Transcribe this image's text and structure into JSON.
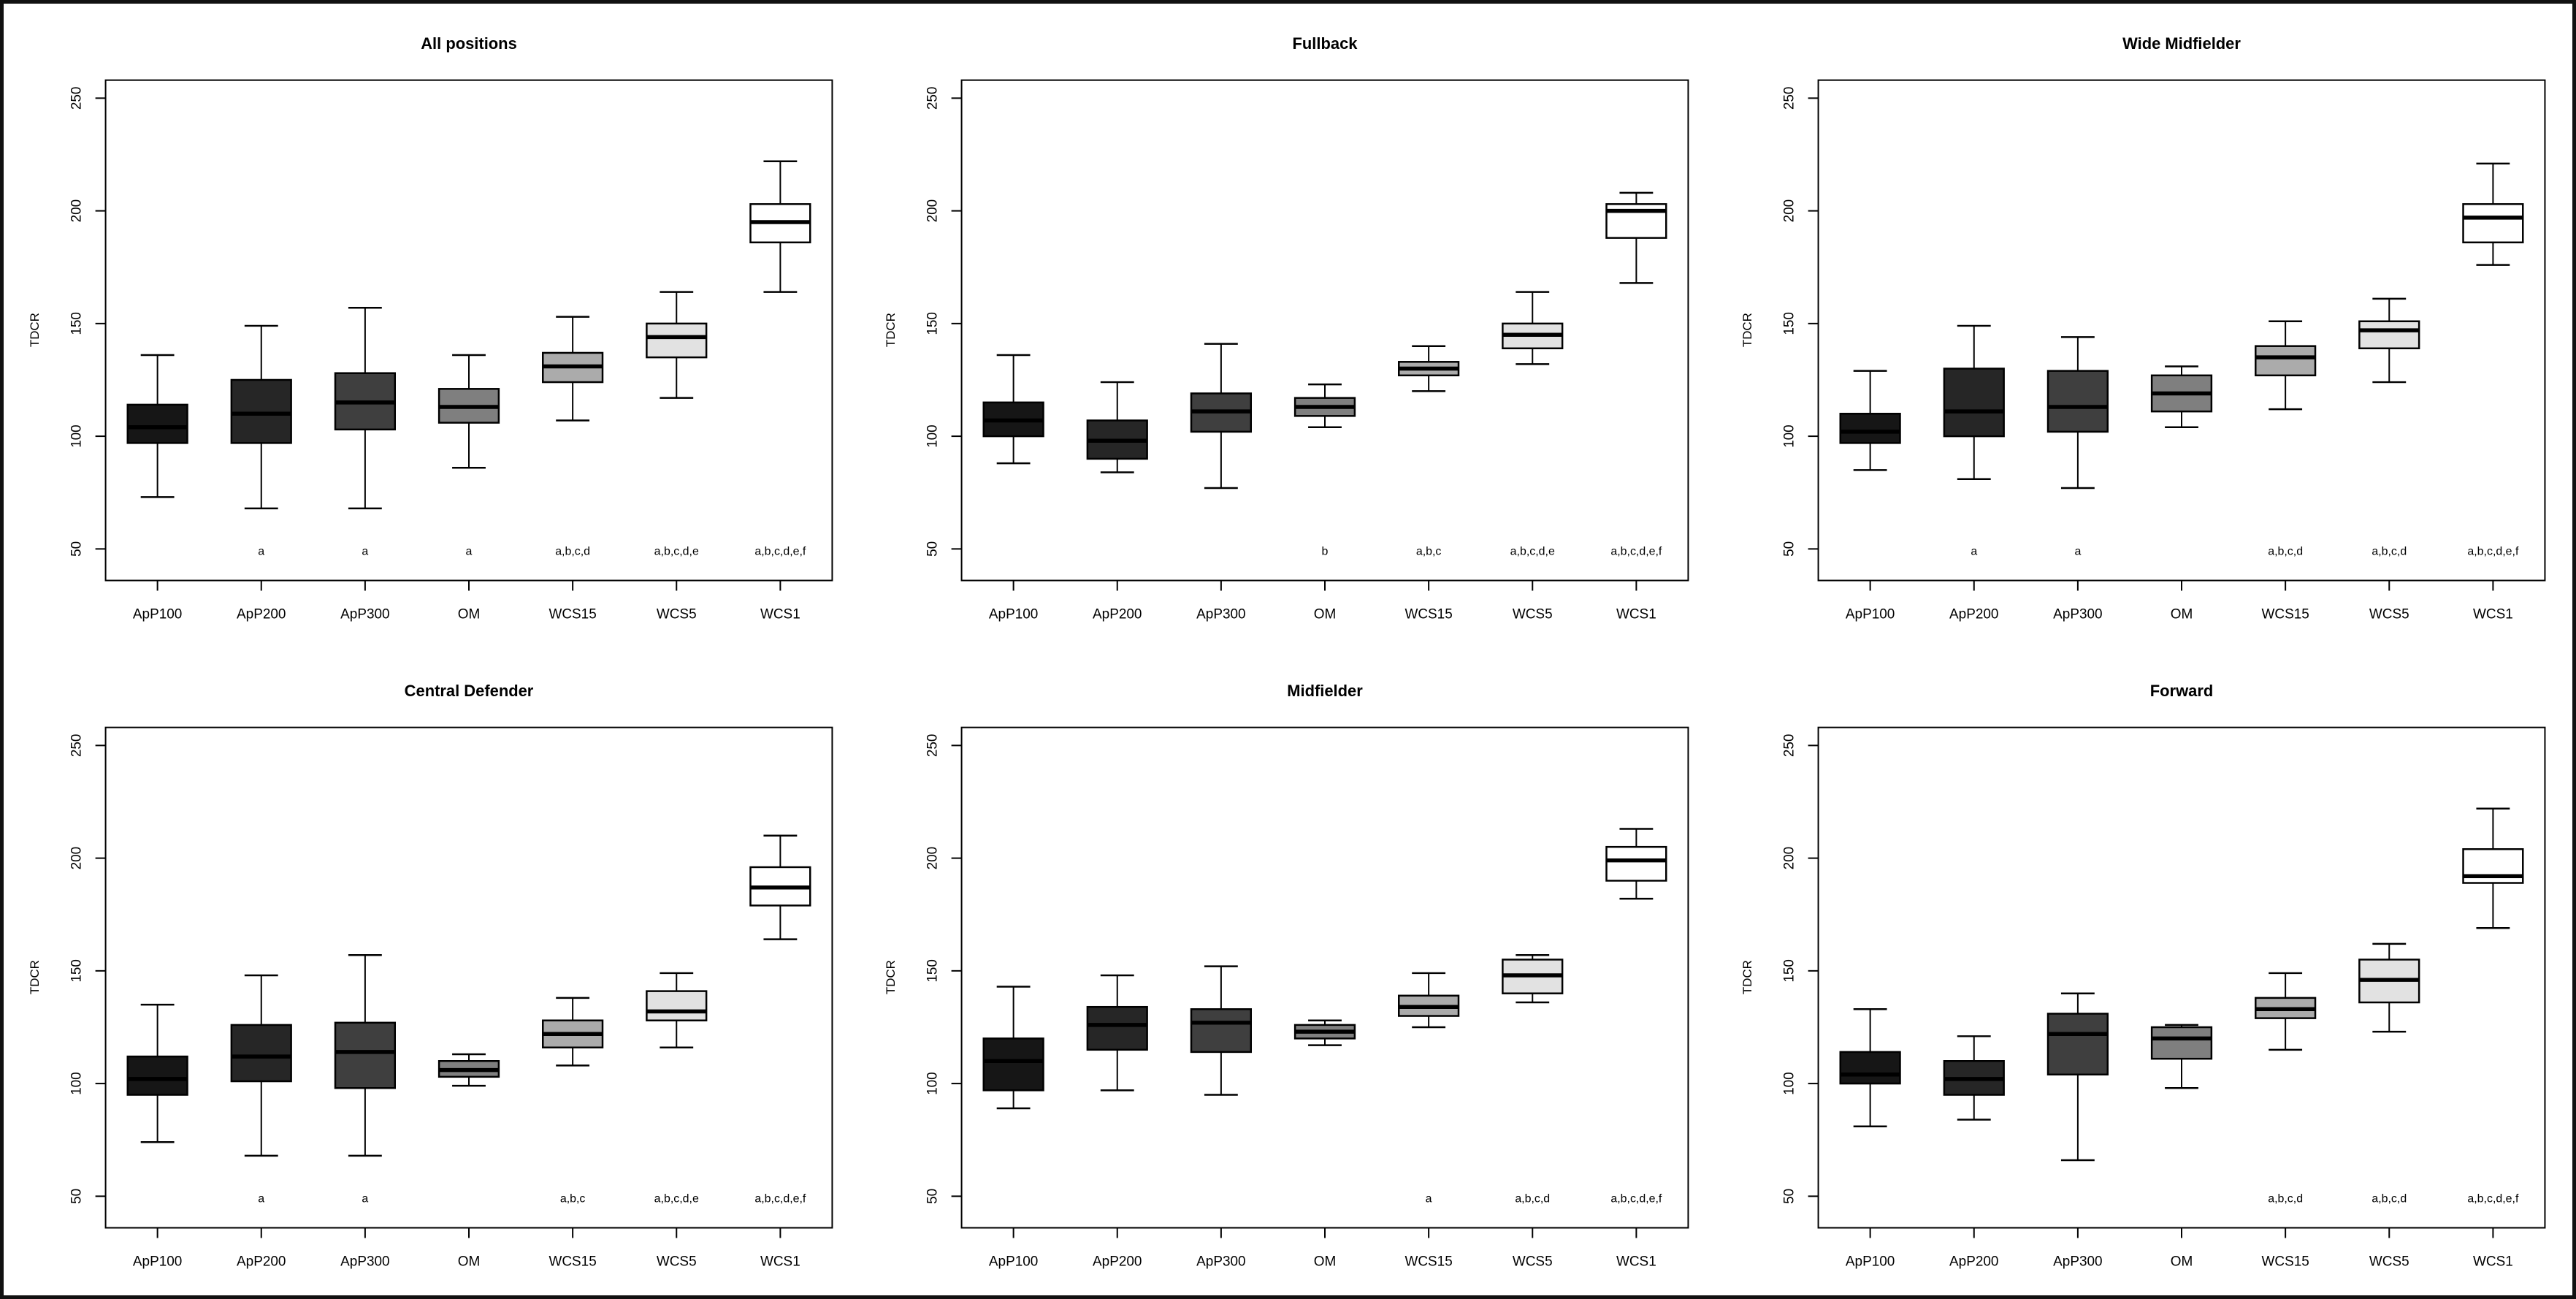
{
  "figure": {
    "background": "#ffffff",
    "outer_border_color": "#111111",
    "axis_color": "#000000",
    "ylabel": "TDCR",
    "yticks": [
      50,
      100,
      150,
      200,
      250
    ],
    "value_window": [
      36,
      258
    ],
    "categories": [
      "ApP100",
      "ApP200",
      "ApP300",
      "OM",
      "WCS15",
      "WCS5",
      "WCS1"
    ],
    "box_colors": [
      "#161616",
      "#262626",
      "#3f3f3f",
      "#7f7f7f",
      "#ababab",
      "#e2e2e2",
      "#ffffff"
    ]
  },
  "chart_data": [
    {
      "type": "box",
      "title": "All positions",
      "xlabel": "",
      "ylabel": "TDCR",
      "ylim": [
        50,
        250
      ],
      "grid": false,
      "boxes": [
        {
          "label": "ApP100",
          "whisker_low": 73,
          "q1": 97,
          "median": 104,
          "q3": 114,
          "whisker_high": 136,
          "sig_label": ""
        },
        {
          "label": "ApP200",
          "whisker_low": 68,
          "q1": 97,
          "median": 110,
          "q3": 125,
          "whisker_high": 149,
          "sig_label": "a"
        },
        {
          "label": "ApP300",
          "whisker_low": 68,
          "q1": 103,
          "median": 115,
          "q3": 128,
          "whisker_high": 157,
          "sig_label": "a"
        },
        {
          "label": "OM",
          "whisker_low": 86,
          "q1": 106,
          "median": 113,
          "q3": 121,
          "whisker_high": 136,
          "sig_label": "a"
        },
        {
          "label": "WCS15",
          "whisker_low": 107,
          "q1": 124,
          "median": 131,
          "q3": 137,
          "whisker_high": 153,
          "sig_label": "a,b,c,d"
        },
        {
          "label": "WCS5",
          "whisker_low": 117,
          "q1": 135,
          "median": 144,
          "q3": 150,
          "whisker_high": 164,
          "sig_label": "a,b,c,d,e"
        },
        {
          "label": "WCS1",
          "whisker_low": 164,
          "q1": 186,
          "median": 195,
          "q3": 203,
          "whisker_high": 222,
          "sig_label": "a,b,c,d,e,f"
        }
      ]
    },
    {
      "type": "box",
      "title": "Fullback",
      "xlabel": "",
      "ylabel": "TDCR",
      "ylim": [
        50,
        250
      ],
      "grid": false,
      "boxes": [
        {
          "label": "ApP100",
          "whisker_low": 88,
          "q1": 100,
          "median": 107,
          "q3": 115,
          "whisker_high": 136,
          "sig_label": ""
        },
        {
          "label": "ApP200",
          "whisker_low": 84,
          "q1": 90,
          "median": 98,
          "q3": 107,
          "whisker_high": 124,
          "sig_label": ""
        },
        {
          "label": "ApP300",
          "whisker_low": 77,
          "q1": 102,
          "median": 111,
          "q3": 119,
          "whisker_high": 141,
          "sig_label": ""
        },
        {
          "label": "OM",
          "whisker_low": 104,
          "q1": 109,
          "median": 113,
          "q3": 117,
          "whisker_high": 123,
          "sig_label": "b"
        },
        {
          "label": "WCS15",
          "whisker_low": 120,
          "q1": 127,
          "median": 130,
          "q3": 133,
          "whisker_high": 140,
          "sig_label": "a,b,c"
        },
        {
          "label": "WCS5",
          "whisker_low": 132,
          "q1": 139,
          "median": 145,
          "q3": 150,
          "whisker_high": 164,
          "sig_label": "a,b,c,d,e"
        },
        {
          "label": "WCS1",
          "whisker_low": 168,
          "q1": 188,
          "median": 200,
          "q3": 203,
          "whisker_high": 208,
          "sig_label": "a,b,c,d,e,f"
        }
      ]
    },
    {
      "type": "box",
      "title": "Wide Midfielder",
      "xlabel": "",
      "ylabel": "TDCR",
      "ylim": [
        50,
        250
      ],
      "grid": false,
      "boxes": [
        {
          "label": "ApP100",
          "whisker_low": 85,
          "q1": 97,
          "median": 102,
          "q3": 110,
          "whisker_high": 129,
          "sig_label": ""
        },
        {
          "label": "ApP200",
          "whisker_low": 81,
          "q1": 100,
          "median": 111,
          "q3": 130,
          "whisker_high": 149,
          "sig_label": "a"
        },
        {
          "label": "ApP300",
          "whisker_low": 77,
          "q1": 102,
          "median": 113,
          "q3": 129,
          "whisker_high": 144,
          "sig_label": "a"
        },
        {
          "label": "OM",
          "whisker_low": 104,
          "q1": 111,
          "median": 119,
          "q3": 127,
          "whisker_high": 131,
          "sig_label": ""
        },
        {
          "label": "WCS15",
          "whisker_low": 112,
          "q1": 127,
          "median": 135,
          "q3": 140,
          "whisker_high": 151,
          "sig_label": "a,b,c,d"
        },
        {
          "label": "WCS5",
          "whisker_low": 124,
          "q1": 139,
          "median": 147,
          "q3": 151,
          "whisker_high": 161,
          "sig_label": "a,b,c,d"
        },
        {
          "label": "WCS1",
          "whisker_low": 176,
          "q1": 186,
          "median": 197,
          "q3": 203,
          "whisker_high": 221,
          "sig_label": "a,b,c,d,e,f"
        }
      ]
    },
    {
      "type": "box",
      "title": "Central Defender",
      "xlabel": "",
      "ylabel": "TDCR",
      "ylim": [
        50,
        250
      ],
      "grid": false,
      "boxes": [
        {
          "label": "ApP100",
          "whisker_low": 74,
          "q1": 95,
          "median": 102,
          "q3": 112,
          "whisker_high": 135,
          "sig_label": ""
        },
        {
          "label": "ApP200",
          "whisker_low": 68,
          "q1": 101,
          "median": 112,
          "q3": 126,
          "whisker_high": 148,
          "sig_label": "a"
        },
        {
          "label": "ApP300",
          "whisker_low": 68,
          "q1": 98,
          "median": 114,
          "q3": 127,
          "whisker_high": 157,
          "sig_label": "a"
        },
        {
          "label": "OM",
          "whisker_low": 99,
          "q1": 103,
          "median": 106,
          "q3": 110,
          "whisker_high": 113,
          "sig_label": ""
        },
        {
          "label": "WCS15",
          "whisker_low": 108,
          "q1": 116,
          "median": 122,
          "q3": 128,
          "whisker_high": 138,
          "sig_label": "a,b,c"
        },
        {
          "label": "WCS5",
          "whisker_low": 116,
          "q1": 128,
          "median": 132,
          "q3": 141,
          "whisker_high": 149,
          "sig_label": "a,b,c,d,e"
        },
        {
          "label": "WCS1",
          "whisker_low": 164,
          "q1": 179,
          "median": 187,
          "q3": 196,
          "whisker_high": 210,
          "sig_label": "a,b,c,d,e,f"
        }
      ]
    },
    {
      "type": "box",
      "title": "Midfielder",
      "xlabel": "",
      "ylabel": "TDCR",
      "ylim": [
        50,
        250
      ],
      "grid": false,
      "boxes": [
        {
          "label": "ApP100",
          "whisker_low": 89,
          "q1": 97,
          "median": 110,
          "q3": 120,
          "whisker_high": 143,
          "sig_label": ""
        },
        {
          "label": "ApP200",
          "whisker_low": 97,
          "q1": 115,
          "median": 126,
          "q3": 134,
          "whisker_high": 148,
          "sig_label": ""
        },
        {
          "label": "ApP300",
          "whisker_low": 95,
          "q1": 114,
          "median": 127,
          "q3": 133,
          "whisker_high": 152,
          "sig_label": ""
        },
        {
          "label": "OM",
          "whisker_low": 117,
          "q1": 120,
          "median": 123,
          "q3": 126,
          "whisker_high": 128,
          "sig_label": ""
        },
        {
          "label": "WCS15",
          "whisker_low": 125,
          "q1": 130,
          "median": 134,
          "q3": 139,
          "whisker_high": 149,
          "sig_label": "a"
        },
        {
          "label": "WCS5",
          "whisker_low": 136,
          "q1": 140,
          "median": 148,
          "q3": 155,
          "whisker_high": 157,
          "sig_label": "a,b,c,d"
        },
        {
          "label": "WCS1",
          "whisker_low": 182,
          "q1": 190,
          "median": 199,
          "q3": 205,
          "whisker_high": 213,
          "sig_label": "a,b,c,d,e,f"
        }
      ]
    },
    {
      "type": "box",
      "title": "Forward",
      "xlabel": "",
      "ylabel": "TDCR",
      "ylim": [
        50,
        250
      ],
      "grid": false,
      "boxes": [
        {
          "label": "ApP100",
          "whisker_low": 81,
          "q1": 100,
          "median": 104,
          "q3": 114,
          "whisker_high": 133,
          "sig_label": ""
        },
        {
          "label": "ApP200",
          "whisker_low": 84,
          "q1": 95,
          "median": 102,
          "q3": 110,
          "whisker_high": 121,
          "sig_label": ""
        },
        {
          "label": "ApP300",
          "whisker_low": 66,
          "q1": 104,
          "median": 122,
          "q3": 131,
          "whisker_high": 140,
          "sig_label": ""
        },
        {
          "label": "OM",
          "whisker_low": 98,
          "q1": 111,
          "median": 120,
          "q3": 125,
          "whisker_high": 126,
          "sig_label": ""
        },
        {
          "label": "WCS15",
          "whisker_low": 115,
          "q1": 129,
          "median": 133,
          "q3": 138,
          "whisker_high": 149,
          "sig_label": "a,b,c,d"
        },
        {
          "label": "WCS5",
          "whisker_low": 123,
          "q1": 136,
          "median": 146,
          "q3": 155,
          "whisker_high": 162,
          "sig_label": "a,b,c,d"
        },
        {
          "label": "WCS1",
          "whisker_low": 169,
          "q1": 189,
          "median": 192,
          "q3": 204,
          "whisker_high": 222,
          "sig_label": "a,b,c,d,e,f"
        }
      ]
    }
  ]
}
